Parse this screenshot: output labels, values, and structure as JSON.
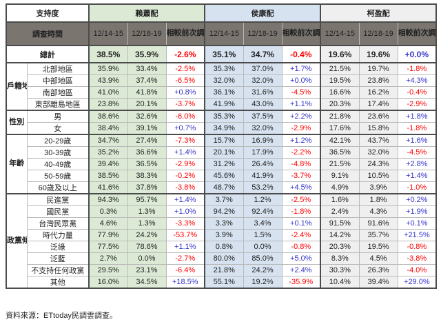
{
  "colors": {
    "lai_bg": "#dcead5",
    "hou_bg": "#d6e2f0",
    "ko_bg": "#efefef",
    "header_bg": "#7b7570",
    "negative_text": "#ff0000",
    "positive_text": "#3333cc",
    "border_dark": "#4c4c4c"
  },
  "chart_data": {
    "type": "table",
    "corner_label": "支持度",
    "time_label": "調查時間",
    "change_label": "相較前次調查增減",
    "date_columns": [
      "12/14-15",
      "12/18-19"
    ],
    "groups": [
      "賴蕭配",
      "侯康配",
      "柯盈配"
    ],
    "total": {
      "label": "總計",
      "values": [
        "38.5%",
        "35.9%",
        "-2.6%",
        "35.1%",
        "34.7%",
        "-0.4%",
        "19.6%",
        "19.6%",
        "+0.0%"
      ]
    },
    "sections": [
      {
        "category": "戶籍地區",
        "rows": [
          {
            "label": "北部地區",
            "values": [
              "35.9%",
              "33.4%",
              "-2.5%",
              "35.3%",
              "37.0%",
              "+1.7%",
              "21.5%",
              "19.7%",
              "-1.8%"
            ]
          },
          {
            "label": "中部地區",
            "values": [
              "43.9%",
              "37.4%",
              "-6.5%",
              "32.0%",
              "32.0%",
              "+0.0%",
              "19.5%",
              "23.8%",
              "+4.3%"
            ]
          },
          {
            "label": "南部地區",
            "values": [
              "41.0%",
              "41.8%",
              "+0.8%",
              "36.1%",
              "31.6%",
              "-4.5%",
              "16.6%",
              "16.2%",
              "-0.4%"
            ]
          },
          {
            "label": "東部離島地區",
            "values": [
              "23.8%",
              "20.1%",
              "-3.7%",
              "41.9%",
              "43.0%",
              "+1.1%",
              "20.3%",
              "17.4%",
              "-2.9%"
            ]
          }
        ]
      },
      {
        "category": "性別",
        "rows": [
          {
            "label": "男",
            "values": [
              "38.6%",
              "32.6%",
              "-6.0%",
              "35.3%",
              "37.5%",
              "+2.2%",
              "21.8%",
              "23.6%",
              "+1.8%"
            ]
          },
          {
            "label": "女",
            "values": [
              "38.4%",
              "39.1%",
              "+0.7%",
              "34.9%",
              "32.0%",
              "-2.9%",
              "17.6%",
              "15.8%",
              "-1.8%"
            ]
          }
        ]
      },
      {
        "category": "年齡",
        "rows": [
          {
            "label": "20-29歲",
            "values": [
              "34.7%",
              "27.4%",
              "-7.3%",
              "15.7%",
              "16.9%",
              "+1.2%",
              "42.1%",
              "43.7%",
              "+1.6%"
            ]
          },
          {
            "label": "30-39歲",
            "values": [
              "35.2%",
              "36.6%",
              "+1.4%",
              "20.1%",
              "17.9%",
              "-2.2%",
              "36.5%",
              "32.0%",
              "-4.5%"
            ]
          },
          {
            "label": "40-49歲",
            "values": [
              "39.4%",
              "36.5%",
              "-2.9%",
              "31.2%",
              "26.4%",
              "-4.8%",
              "21.5%",
              "24.3%",
              "+2.8%"
            ]
          },
          {
            "label": "50-59歲",
            "values": [
              "38.5%",
              "38.3%",
              "-0.2%",
              "45.6%",
              "41.9%",
              "-3.7%",
              "9.1%",
              "10.5%",
              "+1.4%"
            ]
          },
          {
            "label": "60歲及以上",
            "values": [
              "41.6%",
              "37.8%",
              "-3.8%",
              "48.7%",
              "53.2%",
              "+4.5%",
              "4.9%",
              "3.9%",
              "-1.0%"
            ]
          }
        ]
      },
      {
        "category": "政黨傾向",
        "rows": [
          {
            "label": "民進黨",
            "values": [
              "94.3%",
              "95.7%",
              "+1.4%",
              "3.7%",
              "1.2%",
              "-2.5%",
              "1.6%",
              "1.8%",
              "+0.2%"
            ]
          },
          {
            "label": "國民黨",
            "values": [
              "0.3%",
              "1.3%",
              "+1.0%",
              "94.2%",
              "92.4%",
              "-1.8%",
              "2.4%",
              "4.3%",
              "+1.9%"
            ]
          },
          {
            "label": "台灣民眾黨",
            "values": [
              "4.6%",
              "1.3%",
              "-3.3%",
              "3.3%",
              "3.4%",
              "+0.1%",
              "91.5%",
              "91.6%",
              "+0.1%"
            ]
          },
          {
            "label": "時代力量",
            "values": [
              "77.9%",
              "24.2%",
              "-53.7%",
              "3.9%",
              "1.5%",
              "-2.4%",
              "14.2%",
              "35.7%",
              "+21.5%"
            ]
          },
          {
            "label": "泛綠",
            "values": [
              "77.5%",
              "78.6%",
              "+1.1%",
              "0.8%",
              "0.0%",
              "-0.8%",
              "20.3%",
              "19.5%",
              "-0.8%"
            ]
          },
          {
            "label": "泛藍",
            "values": [
              "2.7%",
              "0.0%",
              "-2.7%",
              "80.0%",
              "85.0%",
              "+5.0%",
              "8.3%",
              "4.5%",
              "-3.8%"
            ]
          },
          {
            "label": "不支持任何政黨",
            "values": [
              "29.5%",
              "23.1%",
              "-6.4%",
              "21.8%",
              "24.2%",
              "+2.4%",
              "30.3%",
              "26.3%",
              "-4.0%"
            ]
          },
          {
            "label": "其他",
            "values": [
              "16.0%",
              "34.5%",
              "+18.5%",
              "55.1%",
              "19.2%",
              "-35.9%",
              "10.4%",
              "39.4%",
              "+29.0%"
            ]
          }
        ]
      }
    ]
  },
  "footer": {
    "source": "資料來源：ETtoday民調雲調查。"
  }
}
